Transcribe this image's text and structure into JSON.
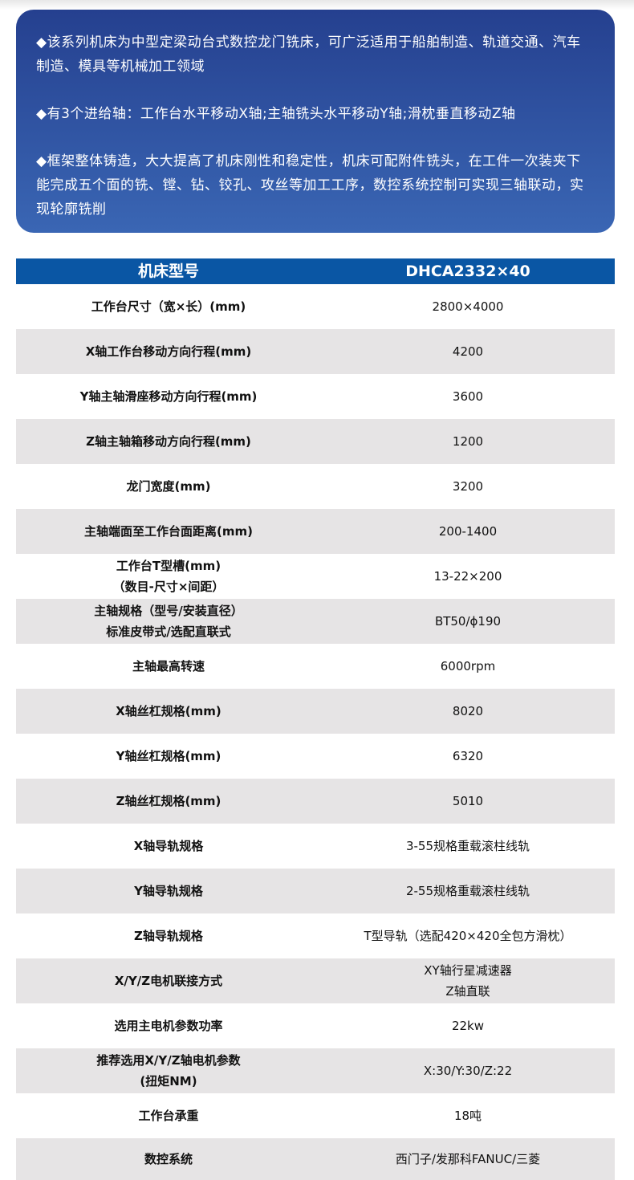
{
  "intro": [
    "◆该系列机床为中型定梁动台式数控龙门铣床，可广泛适用于船舶制造、轨道交通、汽车制造、模具等机械加工领域",
    "◆有3个进给轴：工作台水平移动X轴;主轴铣头水平移动Y轴;滑枕垂直移动Z轴",
    "◆框架整体铸造，大大提高了机床刚性和稳定性，机床可配附件铣头，在工件一次装夹下能完成五个面的铣、镗、钻、铰孔、攻丝等加工工序，数控系统控制可实现三轴联动，实现轮廓铣削"
  ],
  "table": {
    "header": [
      "机床型号",
      "DHCA2332×40"
    ],
    "rows": [
      {
        "label": [
          "工作台尺寸（宽×长）(mm)"
        ],
        "value": [
          "2800×4000"
        ]
      },
      {
        "label": [
          "X轴工作台移动方向行程(mm)"
        ],
        "value": [
          "4200"
        ]
      },
      {
        "label": [
          "Y轴主轴滑座移动方向行程(mm)"
        ],
        "value": [
          "3600"
        ]
      },
      {
        "label": [
          "Z轴主轴箱移动方向行程(mm)"
        ],
        "value": [
          "1200"
        ]
      },
      {
        "label": [
          "龙门宽度(mm)"
        ],
        "value": [
          "3200"
        ]
      },
      {
        "label": [
          "主轴端面至工作台面距离(mm)"
        ],
        "value": [
          "200-1400"
        ]
      },
      {
        "label": [
          "工作台T型槽(mm)",
          "（数目-尺寸×间距）"
        ],
        "value": [
          "13-22×200"
        ]
      },
      {
        "label": [
          "主轴规格（型号/安装直径）",
          "标准皮带式/选配直联式"
        ],
        "value": [
          "BT50/ϕ190"
        ]
      },
      {
        "label": [
          "主轴最高转速"
        ],
        "value": [
          "6000rpm"
        ]
      },
      {
        "label": [
          "X轴丝杠规格(mm)"
        ],
        "value": [
          "8020"
        ]
      },
      {
        "label": [
          "Y轴丝杠规格(mm)"
        ],
        "value": [
          "6320"
        ]
      },
      {
        "label": [
          "Z轴丝杠规格(mm)"
        ],
        "value": [
          "5010"
        ]
      },
      {
        "label": [
          "X轴导轨规格"
        ],
        "value": [
          "3-55规格重载滚柱线轨"
        ]
      },
      {
        "label": [
          "Y轴导轨规格"
        ],
        "value": [
          "2-55规格重载滚柱线轨"
        ]
      },
      {
        "label": [
          "Z轴导轨规格"
        ],
        "value": [
          "T型导轨（选配420×420全包方滑枕）"
        ]
      },
      {
        "label": [
          "X/Y/Z电机联接方式"
        ],
        "value": [
          "XY轴行星减速器",
          "Z轴直联"
        ]
      },
      {
        "label": [
          "选用主电机参数功率"
        ],
        "value": [
          "22kw"
        ]
      },
      {
        "label": [
          "推荐选用X/Y/Z轴电机参数",
          "(扭矩NM)"
        ],
        "value": [
          "X:30/Y:30/Z:22"
        ]
      },
      {
        "label": [
          "工作台承重"
        ],
        "value": [
          "18吨"
        ]
      },
      {
        "label": [
          "数控系统"
        ],
        "value": [
          "西门子/发那科FANUC/三菱"
        ]
      }
    ]
  },
  "colors": {
    "header": "#0a56a4",
    "intro_top": "#25408f",
    "intro_bottom": "#3a66b4",
    "stripe": "#e6e4e5"
  }
}
